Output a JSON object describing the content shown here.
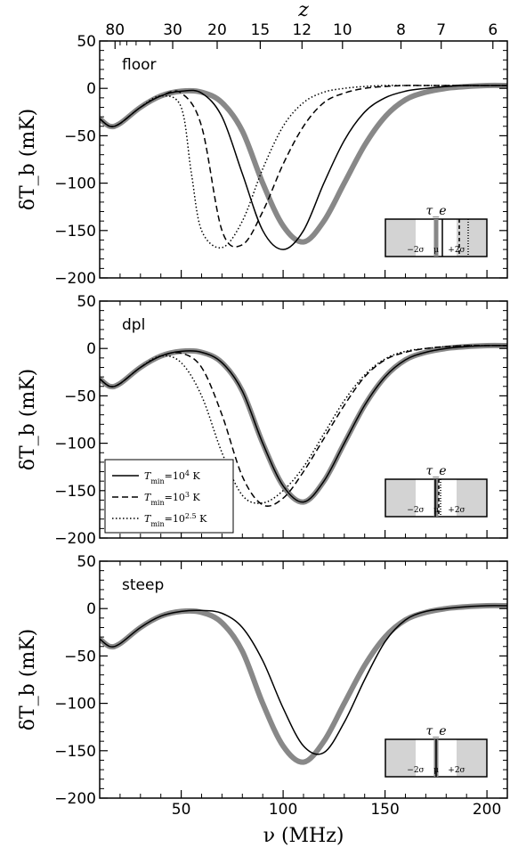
{
  "chart_data": {
    "type": "line",
    "xlabel": "ν (MHz)",
    "top_axis_label": "z",
    "xlim": [
      10,
      210
    ],
    "ylim": [
      -200,
      50
    ],
    "ylabel": "δT_b (mK)",
    "x_ticks": [
      50,
      100,
      150,
      200
    ],
    "y_ticks": [
      50,
      0,
      -50,
      -100,
      -150,
      -200
    ],
    "y_tick_labels": [
      "50",
      "0",
      "−50",
      "−100",
      "−150",
      "−200"
    ],
    "top_ticks": [
      80,
      30,
      20,
      15,
      12,
      10,
      8,
      7,
      6
    ],
    "legend": {
      "placement": "lower-left of middle panel",
      "entries": [
        {
          "style": "solid",
          "label_prefix": "T",
          "label_sub": "min",
          "label_eq": "=10",
          "label_exp": "4",
          "label_unit": " K"
        },
        {
          "style": "dashed",
          "label_prefix": "T",
          "label_sub": "min",
          "label_eq": "=10",
          "label_exp": "3",
          "label_unit": " K"
        },
        {
          "style": "dotted",
          "label_prefix": "T",
          "label_sub": "min",
          "label_eq": "=10",
          "label_exp": "2.5",
          "label_unit": " K"
        }
      ]
    },
    "inset": {
      "title": "τ_e",
      "labels": [
        "−2σ",
        "μ",
        "+2σ"
      ]
    },
    "panels": [
      {
        "label": "floor",
        "reference": {
          "name": "",
          "color": "#888888",
          "x": [
            10,
            15,
            20,
            30,
            40,
            50,
            60,
            70,
            80,
            90,
            100,
            110,
            120,
            130,
            140,
            150,
            160,
            170,
            180,
            190,
            200,
            210
          ],
          "y": [
            -32,
            -40,
            -37,
            -20,
            -8,
            -3,
            -4,
            -15,
            -45,
            -100,
            -145,
            -162,
            -140,
            -100,
            -60,
            -30,
            -12,
            -4,
            0,
            2,
            3,
            3
          ]
        },
        "series": [
          {
            "name": "",
            "style": "solid",
            "x": [
              10,
              15,
              20,
              30,
              40,
              50,
              60,
              70,
              80,
              90,
              100,
              110,
              120,
              130,
              140,
              150,
              160,
              170,
              180,
              190,
              200,
              210
            ],
            "y": [
              -32,
              -40,
              -37,
              -20,
              -8,
              -3,
              -5,
              -30,
              -90,
              -150,
              -170,
              -150,
              -100,
              -55,
              -25,
              -10,
              -3,
              0,
              2,
              3,
              3,
              3
            ]
          },
          {
            "name": "",
            "style": "dashed",
            "x": [
              10,
              15,
              20,
              30,
              40,
              50,
              60,
              70,
              80,
              90,
              100,
              110,
              120,
              130,
              140,
              150,
              160,
              170,
              180,
              190,
              200,
              210
            ],
            "y": [
              -32,
              -40,
              -37,
              -20,
              -8,
              -5,
              -40,
              -150,
              -165,
              -130,
              -80,
              -40,
              -15,
              -5,
              0,
              2,
              3,
              3,
              3,
              3,
              3,
              3
            ]
          },
          {
            "name": "",
            "style": "dotted",
            "x": [
              10,
              15,
              20,
              30,
              40,
              50,
              55,
              60,
              70,
              80,
              90,
              100,
              110,
              120,
              130,
              140,
              150,
              160,
              170,
              180,
              190,
              200,
              210
            ],
            "y": [
              -32,
              -40,
              -37,
              -20,
              -8,
              -20,
              -90,
              -150,
              -168,
              -140,
              -85,
              -40,
              -15,
              -4,
              0,
              2,
              3,
              3,
              3,
              3,
              3,
              3,
              3
            ]
          }
        ]
      },
      {
        "label": "dpl",
        "reference": {
          "name": "",
          "color": "#888888",
          "x": [
            10,
            15,
            20,
            30,
            40,
            50,
            60,
            70,
            80,
            90,
            100,
            110,
            120,
            130,
            140,
            150,
            160,
            170,
            180,
            190,
            200,
            210
          ],
          "y": [
            -32,
            -40,
            -37,
            -20,
            -8,
            -3,
            -4,
            -15,
            -45,
            -100,
            -145,
            -162,
            -140,
            -100,
            -60,
            -30,
            -12,
            -4,
            0,
            2,
            3,
            3
          ]
        },
        "series": [
          {
            "name": "",
            "style": "solid",
            "x": [
              10,
              15,
              20,
              30,
              40,
              50,
              60,
              70,
              80,
              90,
              100,
              110,
              120,
              130,
              140,
              150,
              160,
              170,
              180,
              190,
              200,
              210
            ],
            "y": [
              -32,
              -40,
              -37,
              -20,
              -8,
              -3,
              -4,
              -15,
              -45,
              -100,
              -145,
              -162,
              -140,
              -100,
              -60,
              -30,
              -12,
              -4,
              0,
              2,
              3,
              3
            ]
          },
          {
            "name": "",
            "style": "dashed",
            "x": [
              10,
              15,
              20,
              30,
              40,
              50,
              60,
              70,
              80,
              90,
              100,
              110,
              120,
              130,
              140,
              150,
              160,
              170,
              180,
              190,
              200,
              210
            ],
            "y": [
              -32,
              -40,
              -37,
              -20,
              -8,
              -5,
              -20,
              -70,
              -135,
              -165,
              -158,
              -130,
              -95,
              -60,
              -30,
              -12,
              -4,
              0,
              2,
              3,
              3,
              3
            ]
          },
          {
            "name": "",
            "style": "dotted",
            "x": [
              10,
              15,
              20,
              30,
              40,
              50,
              60,
              70,
              80,
              90,
              100,
              110,
              120,
              130,
              140,
              150,
              160,
              170,
              180,
              190,
              200,
              210
            ],
            "y": [
              -32,
              -40,
              -37,
              -20,
              -8,
              -15,
              -50,
              -110,
              -155,
              -163,
              -150,
              -125,
              -90,
              -55,
              -28,
              -11,
              -3,
              0,
              2,
              3,
              3,
              3
            ]
          }
        ]
      },
      {
        "label": "steep",
        "reference": {
          "name": "",
          "color": "#888888",
          "x": [
            10,
            15,
            20,
            30,
            40,
            50,
            60,
            70,
            80,
            90,
            100,
            110,
            120,
            130,
            140,
            150,
            160,
            170,
            180,
            190,
            200,
            210
          ],
          "y": [
            -32,
            -40,
            -37,
            -20,
            -8,
            -3,
            -4,
            -15,
            -45,
            -100,
            -145,
            -162,
            -140,
            -100,
            -60,
            -30,
            -12,
            -4,
            0,
            2,
            3,
            3
          ]
        },
        "series": [
          {
            "name": "",
            "style": "solid",
            "x": [
              10,
              15,
              20,
              30,
              40,
              50,
              60,
              70,
              80,
              90,
              100,
              110,
              120,
              130,
              140,
              150,
              160,
              170,
              180,
              190,
              200,
              210
            ],
            "y": [
              -32,
              -40,
              -37,
              -20,
              -8,
              -3,
              -2,
              -5,
              -20,
              -55,
              -105,
              -145,
              -152,
              -120,
              -75,
              -35,
              -12,
              -3,
              0,
              2,
              3,
              3
            ]
          }
        ]
      }
    ]
  }
}
